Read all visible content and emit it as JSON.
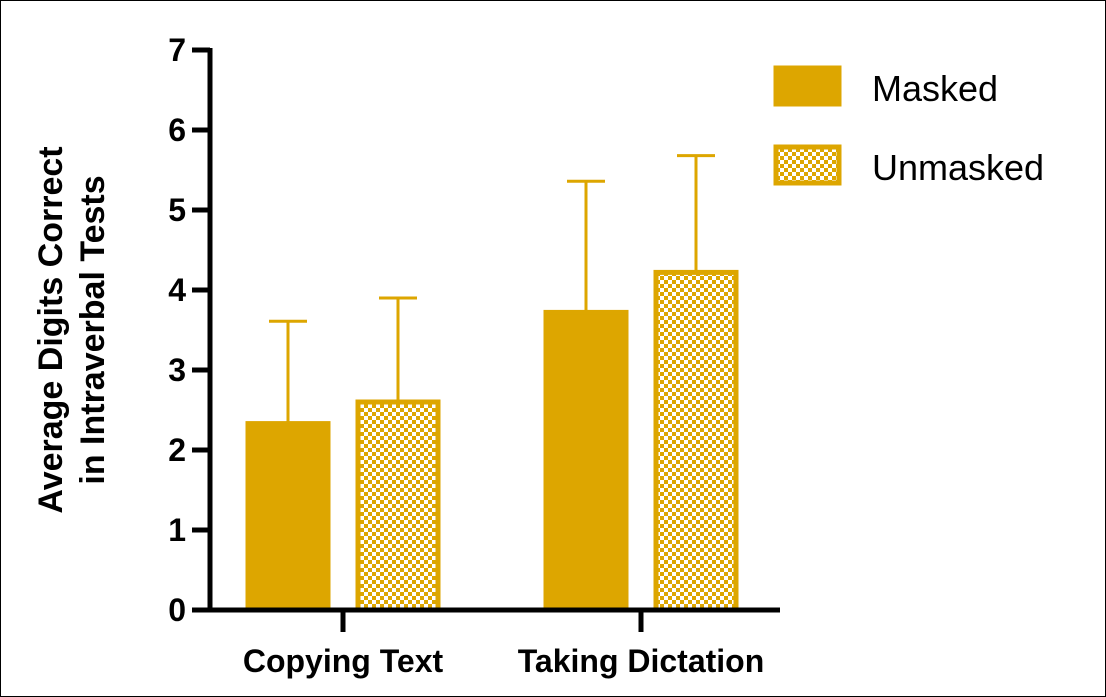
{
  "chart_data": {
    "type": "bar",
    "title": "",
    "ylabel_line1": "Average Digits Correct",
    "ylabel_line2": "in Intraverbal Tests",
    "xlabel": "",
    "ylim": [
      0,
      7
    ],
    "yticks": [
      "0",
      "1",
      "2",
      "3",
      "4",
      "5",
      "6",
      "7"
    ],
    "categories": [
      "Copying Text",
      "Taking Dictation"
    ],
    "series": [
      {
        "name": "Masked",
        "values": [
          2.33,
          3.72
        ],
        "error_upper": [
          3.61,
          5.36
        ],
        "fill": "solid",
        "color": "#DDA600"
      },
      {
        "name": "Unmasked",
        "values": [
          2.6,
          4.22
        ],
        "error_upper": [
          3.9,
          5.68
        ],
        "fill": "checkered",
        "color": "#DDA600"
      }
    ],
    "legend_position": "top-right",
    "grid": false
  }
}
